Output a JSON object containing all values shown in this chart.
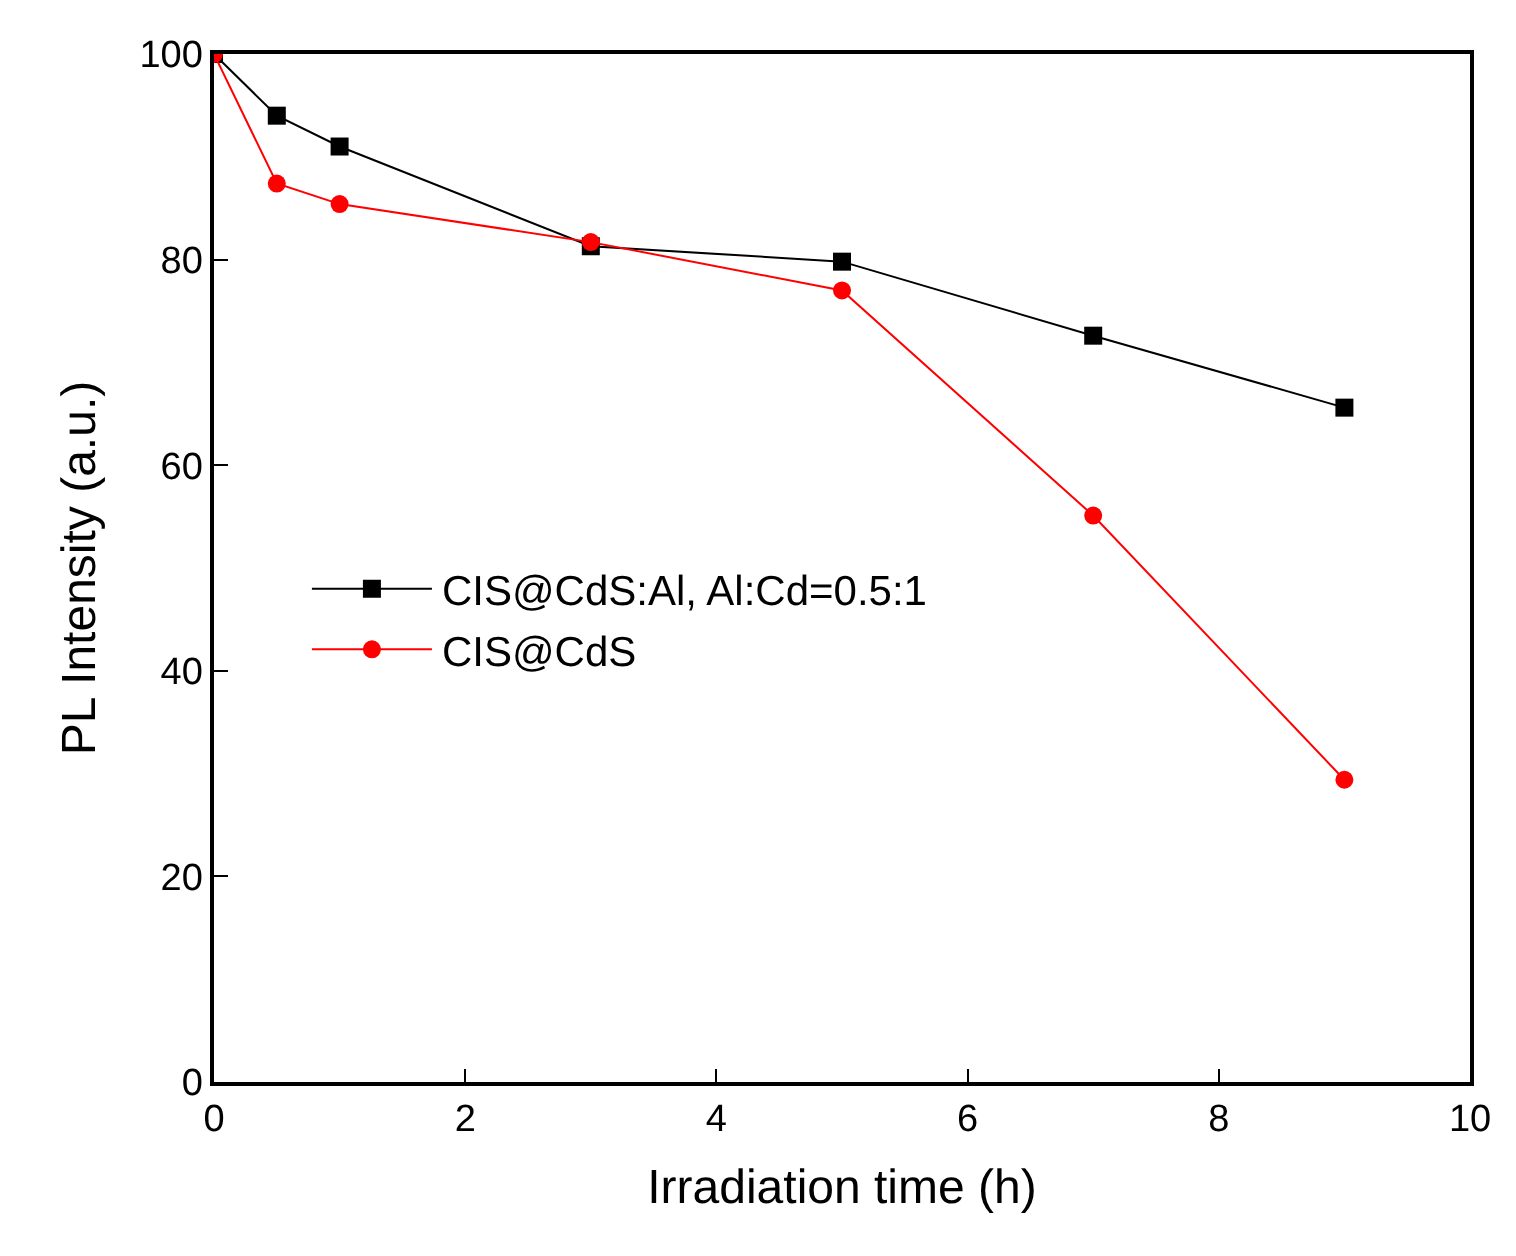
{
  "chart_data": {
    "type": "line",
    "xlabel": "Irradiation time (h)",
    "ylabel": "PL Intensity (a.u.)",
    "x": [
      0,
      0.5,
      1,
      3,
      5,
      7,
      9
    ],
    "series": [
      {
        "name": "CIS@CdS:Al, Al:Cd=0.5:1",
        "color": "#000000",
        "marker": "square",
        "values": [
          100,
          94.0,
          91.0,
          81.3,
          79.8,
          72.6,
          65.6
        ]
      },
      {
        "name": "CIS@CdS",
        "color": "#ff0000",
        "marker": "circle",
        "values": [
          100,
          87.4,
          85.4,
          81.7,
          77.0,
          55.1,
          29.4
        ]
      }
    ],
    "xlim": [
      0,
      10
    ],
    "xticks": [
      0,
      2,
      4,
      6,
      8,
      10
    ],
    "ylim": [
      0,
      100
    ],
    "yticks": [
      0,
      20,
      40,
      60,
      80,
      100
    ],
    "grid": false,
    "legend": "left",
    "line_style": "solid"
  }
}
